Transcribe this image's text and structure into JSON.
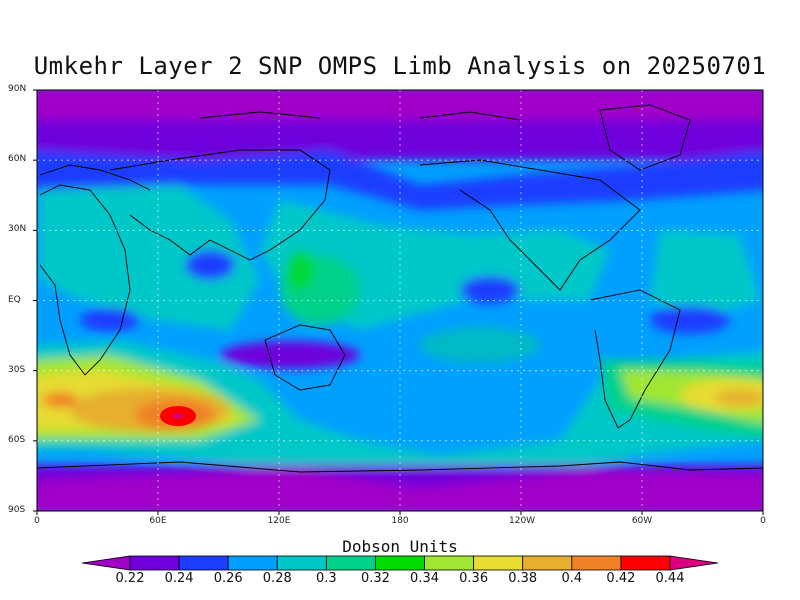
{
  "title": "Umkehr Layer 2 SNP OMPS Limb Analysis on 20250701",
  "map": {
    "lat_labels": [
      "90N",
      "60N",
      "30N",
      "EQ",
      "30S",
      "60S",
      "90S"
    ],
    "lon_labels": [
      "0",
      "60E",
      "120E",
      "180",
      "120W",
      "60W",
      "0"
    ],
    "grid": true,
    "grid_lat_deg": [
      60,
      30,
      0,
      -30,
      -60
    ],
    "grid_lon_deg": [
      60,
      120,
      180,
      240,
      300
    ],
    "projection": "cylindrical equidistant",
    "lon_range": [
      0,
      360
    ],
    "lat_range": [
      -90,
      90
    ]
  },
  "colorbar": {
    "title": "Dobson Units",
    "ticks": [
      "0.22",
      "0.24",
      "0.26",
      "0.28",
      "0.3",
      "0.32",
      "0.34",
      "0.36",
      "0.38",
      "0.4",
      "0.42",
      "0.44"
    ],
    "colors": [
      "#a000c8",
      "#6e00dc",
      "#1e3cff",
      "#00a0ff",
      "#00c8c8",
      "#00d28c",
      "#00dc00",
      "#a0e632",
      "#e6dc32",
      "#e6af2d",
      "#f08228",
      "#fa0000",
      "#dc0080"
    ]
  },
  "chart_data": {
    "type": "heatmap",
    "title": "Umkehr Layer 2 SNP OMPS Limb Analysis on 20250701",
    "units": "Dobson Units",
    "value_range": [
      0.22,
      0.44
    ],
    "features": [
      {
        "region": "Southern Indian Ocean 40S-55S, 0-90E",
        "value": 0.4
      },
      {
        "region": "Peak near 48S, 70E",
        "value": 0.44
      },
      {
        "region": "South Atlantic 35S-50S, 60W-0",
        "value": 0.36
      },
      {
        "region": "Polar regions north of 70N and south of 65S",
        "value": 0.22
      },
      {
        "region": "Tropical western Pacific",
        "value": 0.3
      }
    ]
  }
}
